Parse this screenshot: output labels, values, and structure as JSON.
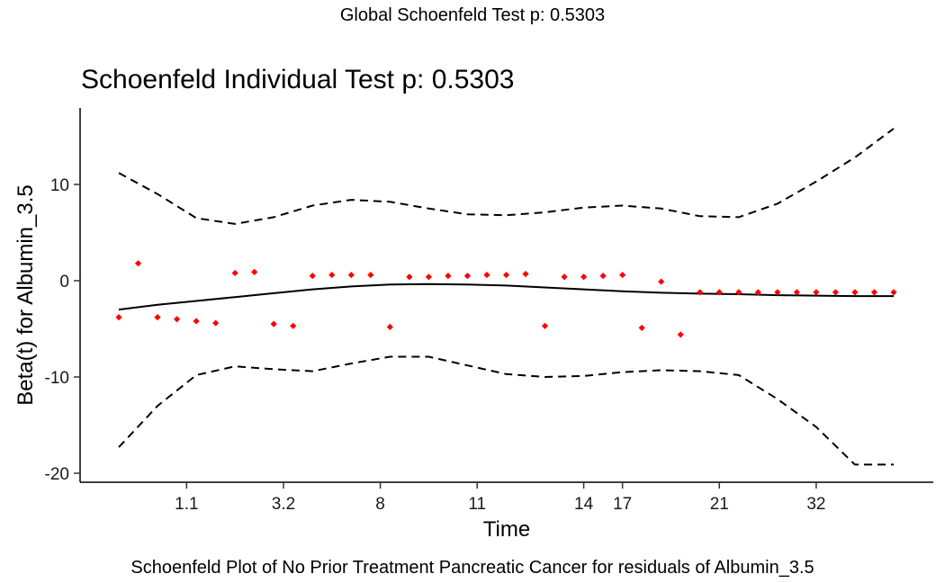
{
  "global_title": "Global Schoenfeld Test p: 0.5303",
  "caption": "Schoenfeld Plot of No Prior Treatment Pancreatic Cancer for residuals of Albumin_3.5",
  "chart_data": {
    "type": "scatter",
    "title": "Schoenfeld Individual Test p: 0.5303",
    "xlabel": "Time",
    "ylabel": "Beta(t) for Albumin_3.5",
    "x_tick_labels": [
      "1.1",
      "3.2",
      "8",
      "11",
      "14",
      "17",
      "21",
      "32"
    ],
    "x_tick_ranks": [
      3.5,
      8.5,
      13.5,
      18.5,
      24.0,
      26.0,
      31.0,
      36.0
    ],
    "x_scale": "transformed (rank-based time)",
    "xlim": [
      0,
      40
    ],
    "y_ticks": [
      -20,
      -10,
      0,
      10
    ],
    "ylim": [
      -21,
      18
    ],
    "grid": false,
    "point_color": "#ff0000",
    "line_color": "#000000",
    "points": {
      "x": [
        0,
        1,
        2,
        3,
        4,
        5,
        6,
        7,
        8,
        9,
        10,
        11,
        12,
        13,
        14,
        15,
        16,
        17,
        18,
        19,
        20,
        21,
        22,
        23,
        24,
        25,
        26,
        27,
        28,
        29,
        30,
        31,
        32,
        33,
        34,
        35,
        36,
        37,
        38,
        39,
        40
      ],
      "y": [
        -3.8,
        1.8,
        -3.8,
        -4.0,
        -4.2,
        -4.4,
        0.8,
        0.9,
        -4.5,
        -4.7,
        0.5,
        0.6,
        0.6,
        0.6,
        -4.8,
        0.4,
        0.4,
        0.5,
        0.5,
        0.6,
        0.6,
        0.7,
        -4.7,
        0.4,
        0.4,
        0.5,
        0.6,
        -4.9,
        -0.1,
        -5.6,
        -1.2,
        -1.2,
        -1.2,
        -1.2,
        -1.2,
        -1.2,
        -1.2,
        -1.2,
        -1.2,
        -1.2,
        -1.2
      ]
    },
    "series": [
      {
        "role": "estimate",
        "style": "solid",
        "x": [
          0,
          2,
          4,
          6,
          8,
          10,
          12,
          14,
          16,
          18,
          20,
          22,
          24,
          26,
          28,
          30,
          32,
          34,
          36,
          38,
          40
        ],
        "y": [
          -3.0,
          -2.5,
          -2.1,
          -1.7,
          -1.3,
          -0.9,
          -0.6,
          -0.4,
          -0.35,
          -0.4,
          -0.5,
          -0.7,
          -0.9,
          -1.1,
          -1.25,
          -1.35,
          -1.4,
          -1.5,
          -1.55,
          -1.6,
          -1.6
        ]
      },
      {
        "role": "upper confidence band",
        "style": "dashed",
        "x": [
          0,
          2,
          4,
          6,
          8,
          10,
          12,
          14,
          16,
          18,
          20,
          22,
          24,
          26,
          28,
          30,
          32,
          34,
          36,
          38,
          40
        ],
        "y": [
          11.2,
          9.0,
          6.5,
          5.9,
          6.6,
          7.8,
          8.4,
          8.2,
          7.5,
          6.9,
          6.8,
          7.1,
          7.6,
          7.8,
          7.5,
          6.7,
          6.6,
          8.0,
          10.3,
          12.8,
          15.8
        ]
      },
      {
        "role": "lower confidence band",
        "style": "dashed",
        "x": [
          0,
          2,
          4,
          6,
          8,
          10,
          12,
          14,
          16,
          18,
          20,
          22,
          24,
          26,
          28,
          30,
          32,
          34,
          36,
          38,
          40
        ],
        "y": [
          -17.3,
          -13.0,
          -9.8,
          -8.9,
          -9.2,
          -9.4,
          -8.6,
          -7.9,
          -7.9,
          -8.8,
          -9.7,
          -10.0,
          -9.9,
          -9.5,
          -9.3,
          -9.4,
          -9.8,
          -12.3,
          -15.2,
          -19.1,
          -19.1
        ]
      }
    ]
  }
}
